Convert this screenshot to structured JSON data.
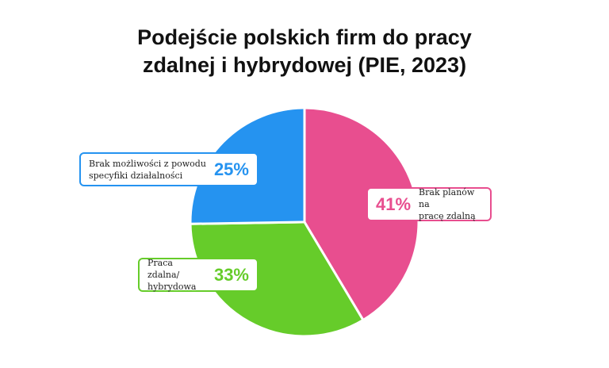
{
  "chart_data": {
    "type": "pie",
    "title": "Podejście polskich firm do pracy\nzdalnej i hybrydowej (PIE, 2023)",
    "categories": [
      "Brak planów na\npracę zdalną",
      "Praca zdalna/\nhybrydowa",
      "Brak możliwości z powodu\nspecyfiki działalności"
    ],
    "values": [
      41,
      33,
      25
    ],
    "value_labels": [
      "41%",
      "33%",
      "25%"
    ],
    "colors": [
      "#e84e8f",
      "#66cc2a",
      "#2593f0"
    ]
  }
}
